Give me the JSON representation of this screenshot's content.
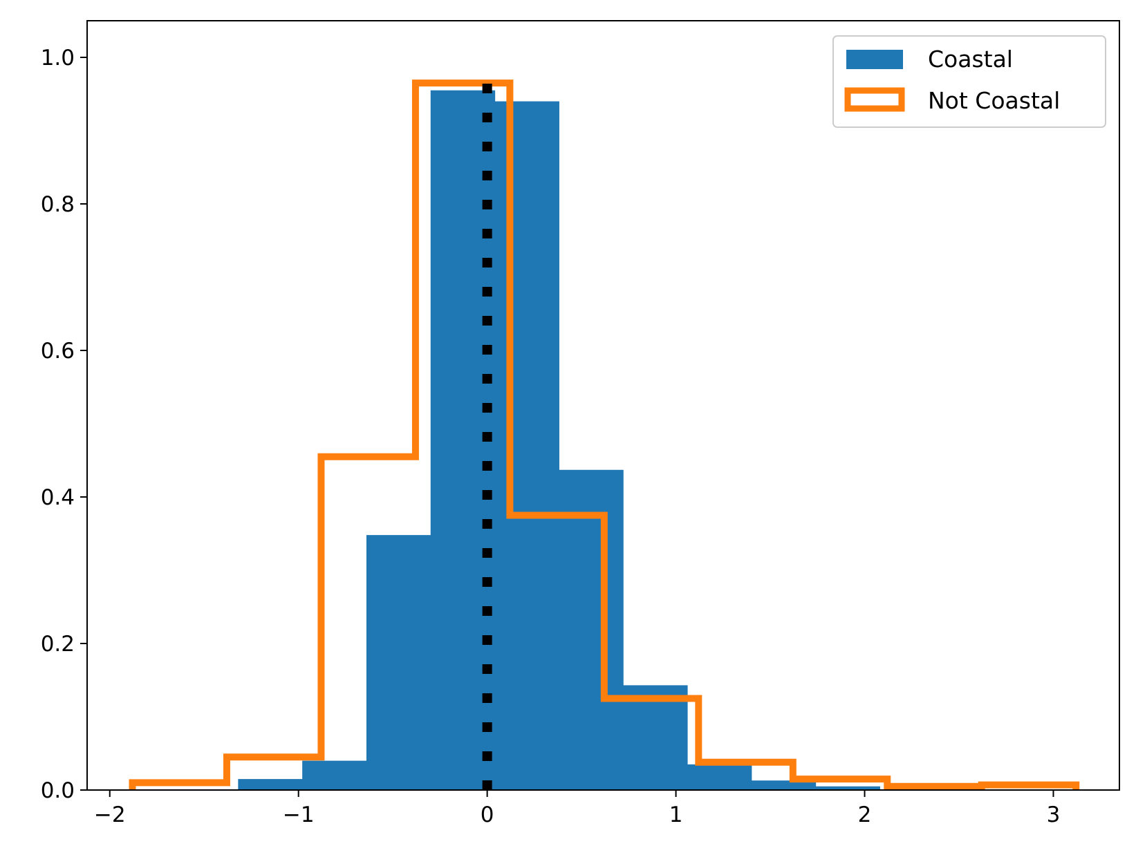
{
  "chart_data": {
    "type": "histogram",
    "title": "",
    "xlabel": "",
    "ylabel": "",
    "xlim": [
      -2.12,
      3.35
    ],
    "ylim": [
      0,
      1.05
    ],
    "xticks": [
      -2,
      -1,
      0,
      1,
      2,
      3
    ],
    "xtick_labels": [
      "−2",
      "−1",
      "0",
      "1",
      "2",
      "3"
    ],
    "yticks": [
      0.0,
      0.2,
      0.4,
      0.6,
      0.8,
      1.0
    ],
    "ytick_labels": [
      "0.0",
      "0.2",
      "0.4",
      "0.6",
      "0.8",
      "1.0"
    ],
    "grid": false,
    "legend_position": "top-right",
    "series": [
      {
        "name": "Coastal",
        "style": "filled",
        "color": "#1f77b4",
        "bin_edges": [
          -1.32,
          -0.98,
          -0.64,
          -0.3,
          0.04,
          0.38,
          0.72,
          1.06,
          1.4,
          1.74,
          2.08
        ],
        "values": [
          0.015,
          0.04,
          0.348,
          0.955,
          0.94,
          0.437,
          0.143,
          0.035,
          0.013,
          0.005
        ]
      },
      {
        "name": "Not Coastal",
        "style": "step",
        "color": "#ff7f0e",
        "bin_edges": [
          -1.88,
          -1.38,
          -0.88,
          -0.38,
          0.12,
          0.62,
          1.12,
          1.62,
          2.12,
          2.62,
          3.12
        ],
        "values": [
          0.01,
          0.045,
          0.455,
          0.965,
          0.375,
          0.125,
          0.038,
          0.015,
          0.005,
          0.007
        ]
      }
    ],
    "reference_line": {
      "x": 0,
      "style": "dotted",
      "color": "#000000",
      "y_top": 0.97
    }
  }
}
